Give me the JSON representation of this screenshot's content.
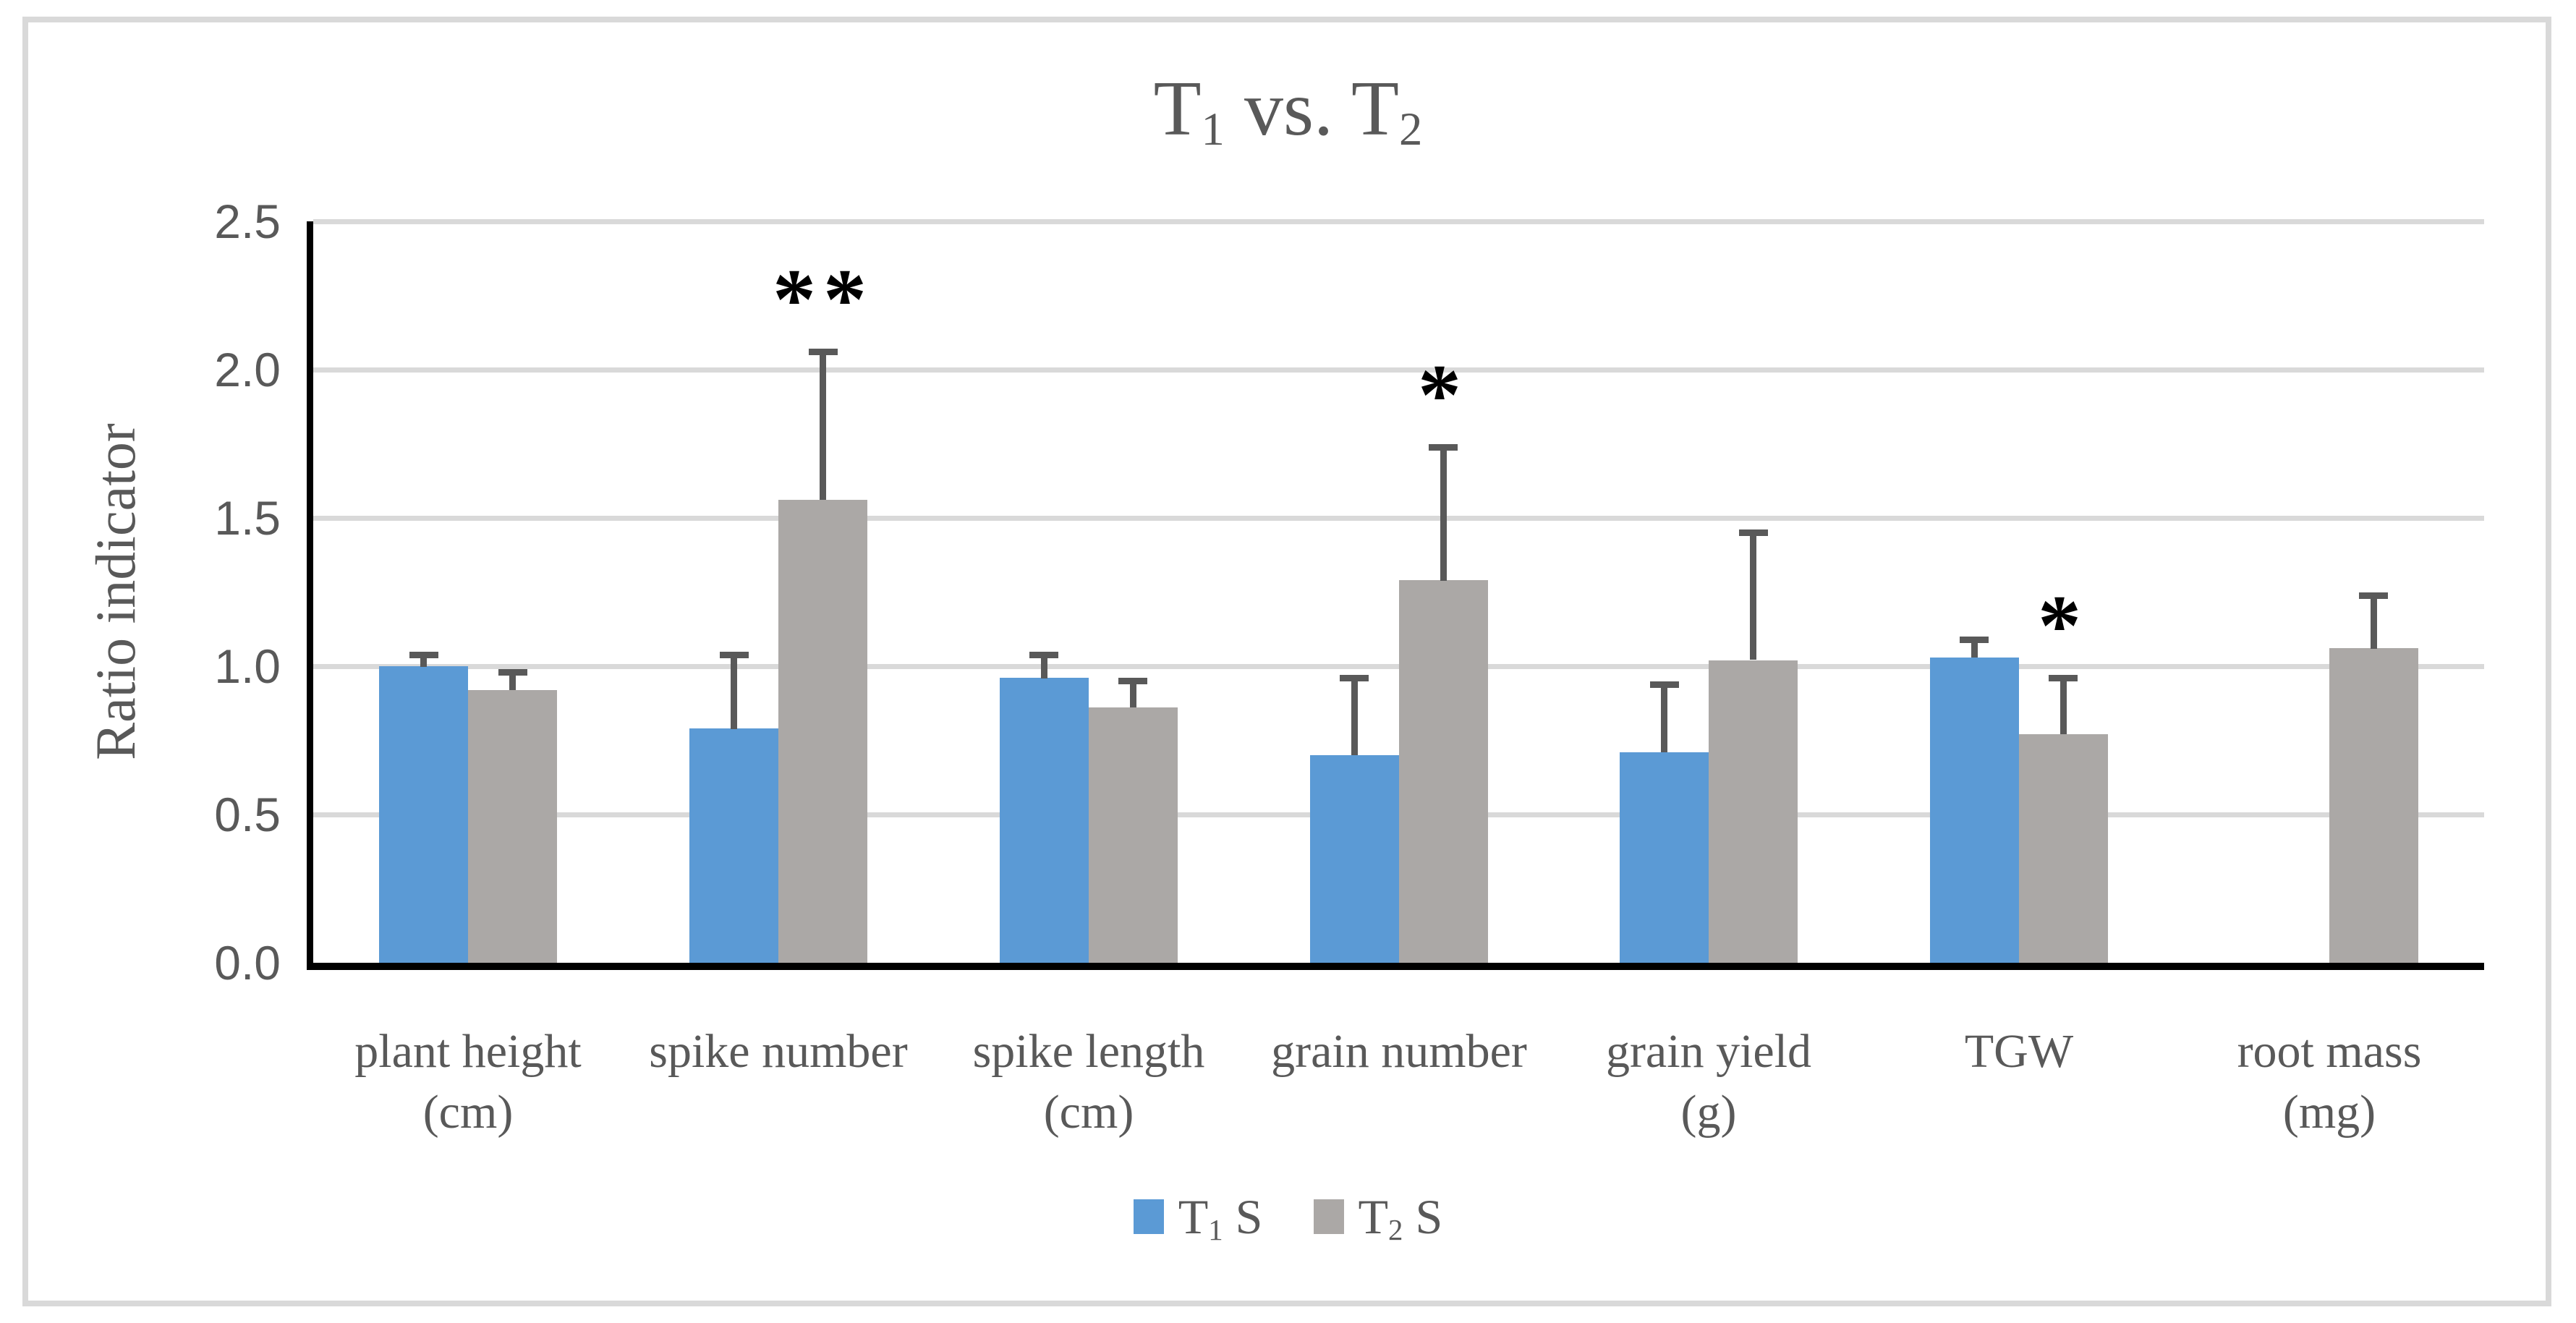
{
  "title": {
    "t1": "T",
    "sub1": "1",
    "mid": " vs. ",
    "t2": "T",
    "sub2": "2"
  },
  "y_axis": {
    "label": "Ratio indicator",
    "ticks": [
      "0.0",
      "0.5",
      "1.0",
      "1.5",
      "2.0",
      "2.5"
    ]
  },
  "legend": {
    "items": [
      {
        "t": "T",
        "sub": "1",
        "suffix": " S",
        "color": "#5B9AD5"
      },
      {
        "t": "T",
        "sub": "2",
        "suffix": " S",
        "color": "#ABA8A6"
      }
    ]
  },
  "colors": {
    "blue_series": "#5B9AD5",
    "gray_series": "#ABA8A6",
    "error_bar": "#595959",
    "gridline": "#D9D9D9",
    "axis": "#000000",
    "text": "#595959",
    "frame": "#D9D9D9",
    "significance": "#000000"
  },
  "chart_data": {
    "type": "bar",
    "title": "T1 vs. T2",
    "ylabel": "Ratio indicator",
    "xlabel": "",
    "ylim": [
      0,
      2.5
    ],
    "ytick_step": 0.5,
    "grid": "horizontal-only",
    "legend_position": "bottom",
    "categories": [
      "plant height\n(cm)",
      "spike number",
      "spike length\n(cm)",
      "grain number",
      "grain yield\n(g)",
      "TGW",
      "root mass\n(mg)"
    ],
    "series": [
      {
        "name": "T1 S",
        "color": "#5B9AD5",
        "values": [
          1.0,
          0.79,
          0.96,
          0.7,
          0.71,
          1.03,
          null
        ],
        "errors_plus": [
          0.05,
          0.26,
          0.09,
          0.27,
          0.24,
          0.07,
          null
        ]
      },
      {
        "name": "T2 S",
        "color": "#ABA8A6",
        "values": [
          0.92,
          1.56,
          0.86,
          1.29,
          1.02,
          0.77,
          1.06
        ],
        "errors_plus": [
          0.07,
          0.51,
          0.1,
          0.46,
          0.44,
          0.2,
          0.19
        ]
      }
    ],
    "significance": [
      {
        "category_index": 1,
        "series": "T2 S",
        "marker": "**"
      },
      {
        "category_index": 3,
        "series": "T2 S",
        "marker": "*"
      },
      {
        "category_index": 5,
        "series": "T2 S",
        "marker": "*"
      }
    ]
  }
}
